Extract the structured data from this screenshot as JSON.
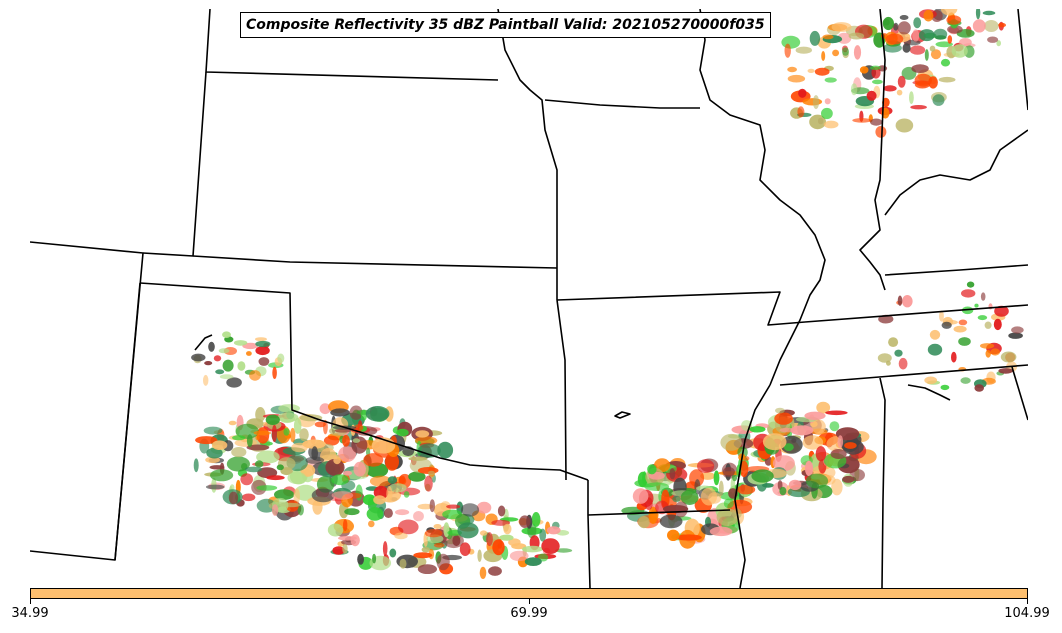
{
  "title": "Composite Reflectivity 35 dBZ Paintball Valid: 202105270000f035",
  "colorbar": {
    "color": "#fdbf6f",
    "ticks": [
      "34.99",
      "69.99",
      "104.99"
    ]
  },
  "map": {
    "background": "#ffffff",
    "border_color": "#000000",
    "member_colors": [
      "#e31a1c",
      "#fb9a99",
      "#ff7f00",
      "#fdbf6f",
      "#33a02c",
      "#b2df8a",
      "#8b3a3a",
      "#bdb76b",
      "#2e8b57",
      "#444444",
      "#ff4500",
      "#32cd32"
    ]
  }
}
